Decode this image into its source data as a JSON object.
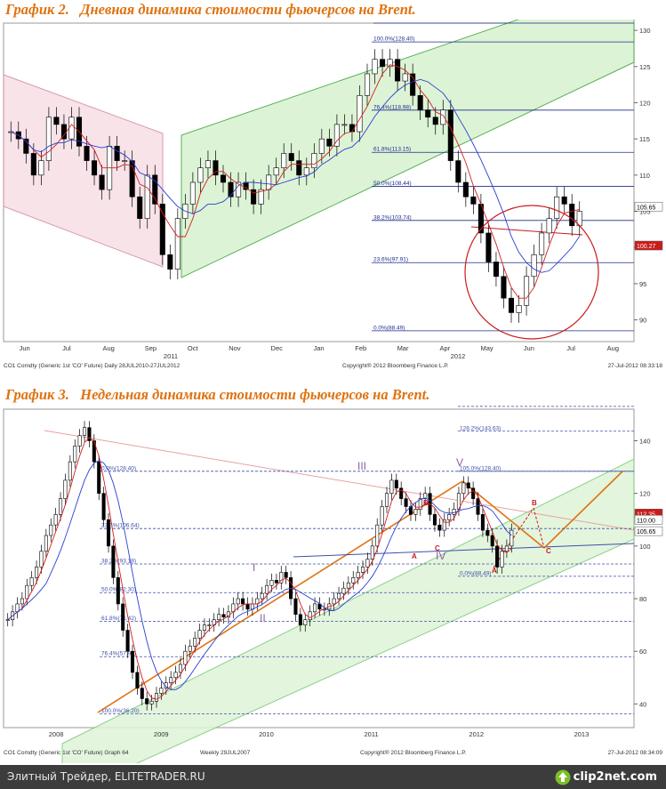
{
  "page": {
    "footer_text": "Элитный Трейдер, ELITETRADER.RU",
    "logo_text": "clip2net.com",
    "colors": {
      "title": "#e0720f",
      "footer_bg": "#3c3c3c"
    }
  },
  "chart_data": [
    {
      "type": "candlestick",
      "title": "График 2.   Дневная динамика стоимости фьючерсов на Brent.",
      "x_tick_labels": [
        "Jun",
        "Jul",
        "Aug",
        "Sep",
        "Oct",
        "Nov",
        "Dec",
        "Jan",
        "Feb",
        "Mar",
        "Apr",
        "May",
        "Jun",
        "Jul",
        "Aug"
      ],
      "year_labels": [
        "2011",
        "2012"
      ],
      "y_tick_labels": [
        "90",
        "95",
        "100",
        "105",
        "110",
        "115",
        "120",
        "125",
        "130"
      ],
      "ylim": [
        87,
        131
      ],
      "fib_levels": [
        {
          "label": "100.0%(128.40)",
          "value": 128.4
        },
        {
          "label": "76.4%(118.98)",
          "value": 118.98
        },
        {
          "label": "61.8%(113.15)",
          "value": 113.15
        },
        {
          "label": "50.0%(108.44)",
          "value": 108.44
        },
        {
          "label": "38.2%(103.74)",
          "value": 103.74
        },
        {
          "label": "23.6%(97.91)",
          "value": 97.91
        },
        {
          "label": "0.0%(88.49)",
          "value": 88.49
        }
      ],
      "last_price_tags": [
        "105.65",
        "100.27"
      ],
      "footer_left": "CO1 Comdty (Generic 1st 'CO' Future) Daily 28JUL2010-27JUL2012",
      "footer_center": "Copyright® 2012 Bloomberg Finance L.P.",
      "footer_right": "27-Jul-2012 08:33:18",
      "close_series": [
        116,
        115,
        113,
        110,
        112,
        118,
        117,
        115,
        118,
        114,
        112,
        110,
        108,
        114,
        112,
        112,
        107,
        104,
        110,
        106,
        99,
        97,
        104,
        106,
        109,
        111,
        112,
        110,
        109,
        107,
        109,
        108,
        106,
        108,
        110,
        111,
        113,
        112,
        110,
        111,
        113,
        115,
        114,
        117,
        117,
        116,
        121,
        124,
        126,
        125,
        126,
        123,
        124,
        121,
        119,
        118,
        117,
        119,
        112,
        109,
        107,
        106,
        102,
        98,
        96,
        93,
        91,
        92,
        96,
        99,
        102,
        104,
        107,
        106,
        103,
        105
      ]
    },
    {
      "type": "candlestick",
      "title": "График 3.   Недельная динамика стоимости фьючерсов на Brent.",
      "x_tick_labels": [
        "2008",
        "2009",
        "2010",
        "2011",
        "2012",
        "2013"
      ],
      "y_tick_labels": [
        "40",
        "60",
        "80",
        "100",
        "120",
        "140"
      ],
      "ylim": [
        31,
        152
      ],
      "fib_levels": [
        {
          "label": "161.8%(153.06)",
          "value": 153.06
        },
        {
          "label": "128.2%(143.63)",
          "value": 143.63
        },
        {
          "label": "0.0%(128.40)",
          "value": 128.4
        },
        {
          "label": "105.0%(128.40)",
          "value": 128.4
        },
        {
          "label": "23.6%(106.64)",
          "value": 106.64
        },
        {
          "label": "38.2%(93.18)",
          "value": 93.18
        },
        {
          "label": "50.0%(82.30)",
          "value": 82.3
        },
        {
          "label": "61.8%(71.42)",
          "value": 71.42
        },
        {
          "label": "76.4%(57.96)",
          "value": 57.96
        },
        {
          "label": "0.0%(88.49)",
          "value": 88.49
        },
        {
          "label": "100.0%(36.20)",
          "value": 36.2
        }
      ],
      "wave_labels": [
        "I",
        "II",
        "III",
        "IV",
        "V",
        "A",
        "B",
        "C",
        "A",
        "B",
        "C"
      ],
      "last_price_tags": [
        "112.35",
        "110.00",
        "105.65"
      ],
      "footer_left": "CO1 Comdty (Generic 1st 'CO' Future) Graph 64",
      "footer_mid": "Weekly 29JUL2007",
      "footer_center": "Copyright® 2012 Bloomberg Finance L.P.",
      "footer_right": "27-Jul-2012 08:34:09",
      "close_series": [
        72,
        75,
        78,
        80,
        85,
        88,
        92,
        98,
        104,
        108,
        112,
        118,
        125,
        132,
        138,
        142,
        145,
        140,
        132,
        120,
        110,
        100,
        88,
        78,
        68,
        60,
        52,
        46,
        42,
        40,
        41,
        44,
        46,
        48,
        50,
        52,
        55,
        60,
        62,
        65,
        68,
        70,
        70,
        72,
        74,
        73,
        75,
        78,
        80,
        78,
        76,
        78,
        80,
        82,
        85,
        87,
        86,
        90,
        88,
        80,
        74,
        70,
        72,
        75,
        78,
        76,
        76,
        78,
        80,
        82,
        84,
        86,
        88,
        90,
        92,
        95,
        100,
        108,
        115,
        120,
        125,
        122,
        118,
        115,
        112,
        114,
        118,
        120,
        112,
        108,
        106,
        110,
        112,
        114,
        120,
        124,
        122,
        118,
        112,
        106,
        104,
        100,
        92,
        98,
        100,
        106
      ]
    }
  ]
}
